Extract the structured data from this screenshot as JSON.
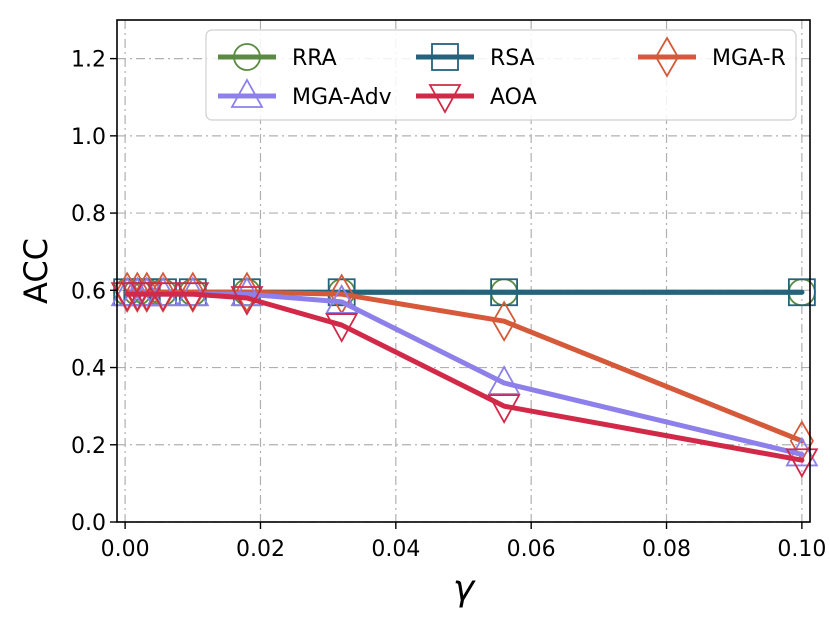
{
  "chart_data": {
    "type": "line",
    "title": "",
    "xlabel": "γ",
    "ylabel": "ACC",
    "xlim": [
      -0.0012,
      0.1012
    ],
    "ylim": [
      0.0,
      1.3
    ],
    "x_ticks": [
      0.0,
      0.02,
      0.04,
      0.06,
      0.08,
      0.1
    ],
    "x_tick_labels": [
      "0.00",
      "0.02",
      "0.04",
      "0.06",
      "0.08",
      "0.10"
    ],
    "y_ticks": [
      0.0,
      0.2,
      0.4,
      0.6,
      0.8,
      1.0,
      1.2
    ],
    "y_tick_labels": [
      "0.0",
      "0.2",
      "0.4",
      "0.6",
      "0.8",
      "1.0",
      "1.2"
    ],
    "grid": true,
    "legend_position": "top-right",
    "x": [
      0.0003,
      0.0018,
      0.0032,
      0.0056,
      0.01,
      0.018,
      0.032,
      0.056,
      0.1
    ],
    "series": [
      {
        "name": "RRA",
        "color": "#5b8a43",
        "marker": "circle",
        "values": [
          0.595,
          0.595,
          0.595,
          0.595,
          0.595,
          0.595,
          0.595,
          0.595,
          0.595
        ]
      },
      {
        "name": "RSA",
        "color": "#23637e",
        "marker": "square",
        "values": [
          0.595,
          0.595,
          0.595,
          0.595,
          0.595,
          0.595,
          0.595,
          0.595,
          0.595
        ]
      },
      {
        "name": "MGA-R",
        "color": "#d45a3a",
        "marker": "diamond",
        "values": [
          0.595,
          0.595,
          0.595,
          0.595,
          0.595,
          0.595,
          0.59,
          0.52,
          0.21
        ]
      },
      {
        "name": "MGA-Adv",
        "color": "#8d80ea",
        "marker": "triangle-up",
        "values": [
          0.59,
          0.59,
          0.59,
          0.59,
          0.59,
          0.59,
          0.57,
          0.36,
          0.175
        ]
      },
      {
        "name": "AOA",
        "color": "#d02a48",
        "marker": "triangle-down",
        "values": [
          0.59,
          0.59,
          0.59,
          0.59,
          0.59,
          0.58,
          0.51,
          0.3,
          0.16
        ]
      }
    ]
  }
}
